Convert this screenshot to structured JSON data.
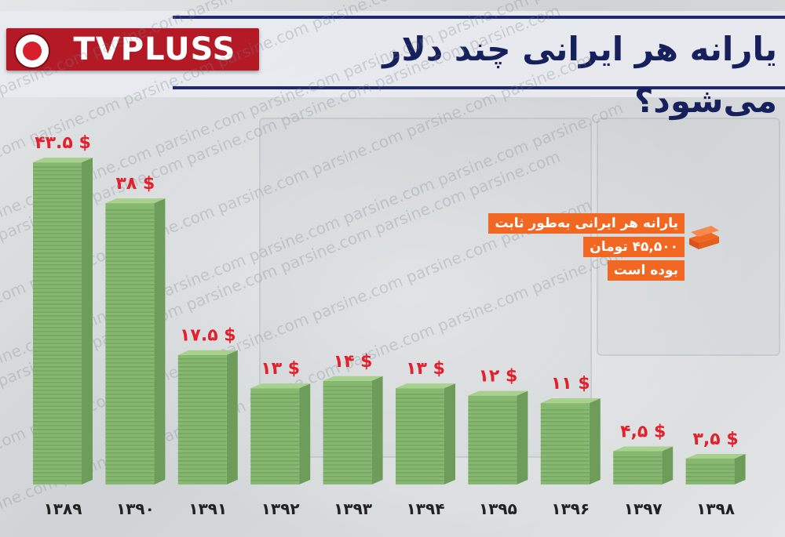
{
  "header": {
    "brand": "TVPLUSS",
    "title": "یارانه هر ایرانی چند دلار می‌شود؟"
  },
  "annotation": {
    "lines": [
      "یارانه هر ایرانی به‌طور ثابت",
      "۴۵,۵۰۰ تومان",
      "بوده است"
    ],
    "color": "#f26722"
  },
  "watermark": "parsine.com",
  "colors": {
    "bar_face": "#86b96f",
    "bar_side": "#6e9c5a",
    "bar_top": "#a7d18c",
    "value_label": "#e3202b",
    "year_label": "#222222"
  },
  "chart_data": {
    "type": "bar",
    "title": "یارانه هر ایرانی چند دلار می‌شود؟",
    "xlabel": "",
    "ylabel": "",
    "categories": [
      "۱۳۸۹",
      "۱۳۹۰",
      "۱۳۹۱",
      "۱۳۹۲",
      "۱۳۹۳",
      "۱۳۹۴",
      "۱۳۹۵",
      "۱۳۹۶",
      "۱۳۹۷",
      "۱۳۹۸"
    ],
    "values": [
      43.5,
      38,
      17.5,
      13,
      14,
      13,
      12,
      11,
      4.5,
      3.5
    ],
    "value_labels": [
      "۴۳.۵ $",
      "۳۸ $",
      "۱۷.۵ $",
      "۱۳ $",
      "۱۴ $",
      "۱۳ $",
      "۱۲ $",
      "۱۱ $",
      "۴,۵ $",
      "۳,۵ $"
    ],
    "ylim": [
      0,
      45
    ],
    "grid": false,
    "legend": "none"
  }
}
